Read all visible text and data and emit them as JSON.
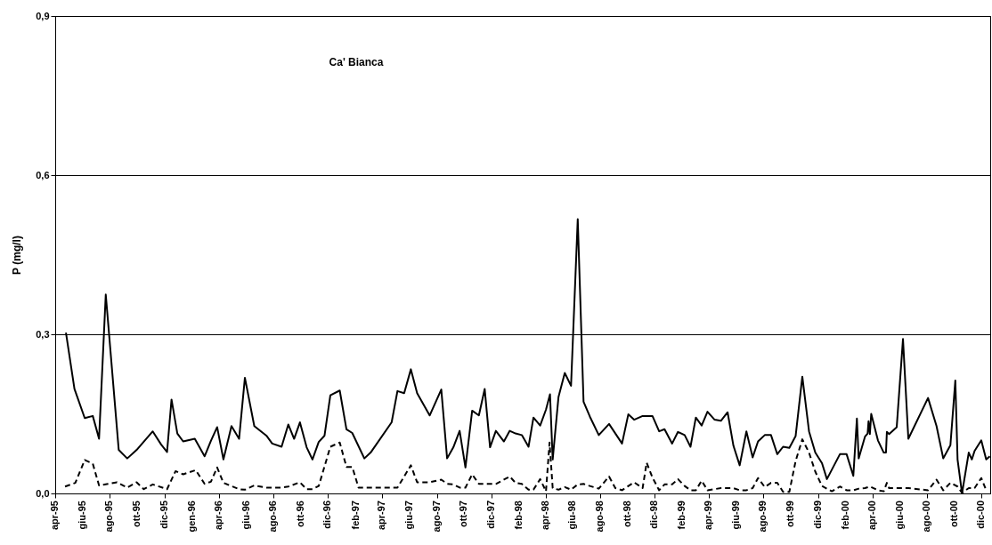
{
  "chart_data": {
    "type": "line",
    "title": "Ca' Bianca",
    "ylabel": "P (mg/l)",
    "ylim": [
      0,
      0.9
    ],
    "yticks": [
      {
        "value": 0,
        "label": "0,0"
      },
      {
        "value": 0.3,
        "label": "0,3"
      },
      {
        "value": 0.6,
        "label": "0,6"
      },
      {
        "value": 0.9,
        "label": "0,9"
      }
    ],
    "xlim": [
      "1995-04-01",
      "2000-12-20"
    ],
    "xticks": [
      {
        "value": "1995-04-01",
        "label": "apr-95"
      },
      {
        "value": "1995-06-01",
        "label": "giu-95"
      },
      {
        "value": "1995-08-01",
        "label": "ago-95"
      },
      {
        "value": "1995-10-01",
        "label": "ott-95"
      },
      {
        "value": "1995-12-01",
        "label": "dic-95"
      },
      {
        "value": "1996-02-01",
        "label": "gen-96"
      },
      {
        "value": "1996-04-01",
        "label": "apr-96"
      },
      {
        "value": "1996-06-01",
        "label": "giu-96"
      },
      {
        "value": "1996-08-01",
        "label": "ago-96"
      },
      {
        "value": "1996-10-01",
        "label": "ott-96"
      },
      {
        "value": "1996-12-01",
        "label": "dic-96"
      },
      {
        "value": "1997-02-01",
        "label": "feb-97"
      },
      {
        "value": "1997-04-01",
        "label": "apr-97"
      },
      {
        "value": "1997-06-01",
        "label": "giu-97"
      },
      {
        "value": "1997-08-01",
        "label": "ago-97"
      },
      {
        "value": "1997-10-01",
        "label": "ott-97"
      },
      {
        "value": "1997-12-01",
        "label": "dic-97"
      },
      {
        "value": "1998-02-01",
        "label": "feb-98"
      },
      {
        "value": "1998-04-01",
        "label": "apr-98"
      },
      {
        "value": "1998-06-01",
        "label": "giu-98"
      },
      {
        "value": "1998-08-01",
        "label": "ago-98"
      },
      {
        "value": "1998-10-01",
        "label": "ott-98"
      },
      {
        "value": "1998-12-01",
        "label": "dic-98"
      },
      {
        "value": "1999-02-01",
        "label": "feb-99"
      },
      {
        "value": "1999-04-01",
        "label": "apr-99"
      },
      {
        "value": "1999-06-01",
        "label": "giu-99"
      },
      {
        "value": "1999-08-01",
        "label": "ago-99"
      },
      {
        "value": "1999-10-01",
        "label": "ott-99"
      },
      {
        "value": "1999-12-01",
        "label": "dic-99"
      },
      {
        "value": "2000-02-01",
        "label": "feb-00"
      },
      {
        "value": "2000-04-01",
        "label": "apr-00"
      },
      {
        "value": "2000-06-01",
        "label": "giu-00"
      },
      {
        "value": "2000-08-01",
        "label": "ago-00"
      },
      {
        "value": "2000-10-01",
        "label": "ott-00"
      },
      {
        "value": "2000-12-01",
        "label": "dic-00"
      }
    ],
    "grid": "y",
    "marker": "none",
    "series": [
      {
        "color": "#000000",
        "line_style": "solid",
        "x": [
          "1995-04-25",
          "1995-05-14",
          "1995-06-06",
          "1995-06-24",
          "1995-07-08",
          "1995-07-23",
          "1995-08-21",
          "1995-09-09",
          "1995-09-30",
          "1995-11-05",
          "1995-11-24",
          "1995-12-07",
          "1995-12-17",
          "1995-12-30",
          "1996-01-12",
          "1996-02-07",
          "1996-02-29",
          "1996-03-14",
          "1996-03-28",
          "1996-04-11",
          "1996-04-29",
          "1996-05-16",
          "1996-05-29",
          "1996-06-19",
          "1996-07-16",
          "1996-07-29",
          "1996-08-19",
          "1996-09-03",
          "1996-09-16",
          "1996-09-29",
          "1996-10-14",
          "1996-10-27",
          "1996-11-10",
          "1996-11-23",
          "1996-12-06",
          "1996-12-27",
          "1997-01-11",
          "1997-01-24",
          "1997-02-20",
          "1997-03-06",
          "1997-04-22",
          "1997-05-05",
          "1997-05-20",
          "1997-06-04",
          "1997-06-18",
          "1997-07-16",
          "1997-08-11",
          "1997-08-24",
          "1997-09-07",
          "1997-09-21",
          "1997-10-04",
          "1997-10-19",
          "1997-11-03",
          "1997-11-16",
          "1997-11-28",
          "1997-12-11",
          "1997-12-29",
          "1998-01-11",
          "1998-01-24",
          "1998-02-07",
          "1998-02-22",
          "1998-03-05",
          "1998-03-20",
          "1998-04-02",
          "1998-04-11",
          "1998-04-17",
          "1998-04-30",
          "1998-05-14",
          "1998-05-28",
          "1998-06-12",
          "1998-06-25",
          "1998-07-09",
          "1998-07-29",
          "1998-08-21",
          "1998-09-19",
          "1998-10-03",
          "1998-10-16",
          "1998-11-04",
          "1998-11-26",
          "1998-12-11",
          "1998-12-23",
          "1999-01-09",
          "1999-01-22",
          "1999-02-06",
          "1999-02-19",
          "1999-03-03",
          "1999-03-16",
          "1999-03-29",
          "1999-04-14",
          "1999-04-28",
          "1999-05-13",
          "1999-05-26",
          "1999-06-09",
          "1999-06-24",
          "1999-07-08",
          "1999-07-20",
          "1999-08-04",
          "1999-08-18",
          "1999-09-01",
          "1999-09-14",
          "1999-09-28",
          "1999-10-12",
          "1999-10-27",
          "1999-11-11",
          "1999-11-25",
          "1999-12-10",
          "1999-12-21",
          "2000-01-19",
          "2000-02-03",
          "2000-02-18",
          "2000-02-26",
          "2000-03-01",
          "2000-03-15",
          "2000-03-21",
          "2000-03-23",
          "2000-03-26",
          "2000-03-29",
          "2000-04-13",
          "2000-04-26",
          "2000-05-01",
          "2000-05-03",
          "2000-05-08",
          "2000-05-25",
          "2000-06-08",
          "2000-06-20",
          "2000-08-03",
          "2000-08-22",
          "2000-09-06",
          "2000-09-22",
          "2000-10-03",
          "2000-10-08",
          "2000-10-18",
          "2000-11-02",
          "2000-11-09",
          "2000-11-15",
          "2000-11-30",
          "2000-12-11",
          "2000-12-19"
        ],
        "values": [
          0.303,
          0.197,
          0.142,
          0.146,
          0.103,
          0.375,
          0.082,
          0.066,
          0.082,
          0.117,
          0.092,
          0.078,
          0.177,
          0.113,
          0.098,
          0.103,
          0.07,
          0.099,
          0.125,
          0.064,
          0.127,
          0.103,
          0.218,
          0.127,
          0.109,
          0.094,
          0.088,
          0.13,
          0.103,
          0.134,
          0.087,
          0.064,
          0.097,
          0.109,
          0.185,
          0.194,
          0.121,
          0.114,
          0.066,
          0.077,
          0.134,
          0.193,
          0.189,
          0.234,
          0.189,
          0.147,
          0.196,
          0.066,
          0.087,
          0.118,
          0.049,
          0.156,
          0.147,
          0.197,
          0.087,
          0.118,
          0.098,
          0.118,
          0.113,
          0.11,
          0.088,
          0.143,
          0.128,
          0.158,
          0.187,
          0.064,
          0.182,
          0.227,
          0.203,
          0.517,
          0.173,
          0.145,
          0.11,
          0.131,
          0.094,
          0.149,
          0.139,
          0.146,
          0.146,
          0.117,
          0.121,
          0.094,
          0.116,
          0.11,
          0.088,
          0.143,
          0.128,
          0.154,
          0.139,
          0.137,
          0.153,
          0.09,
          0.053,
          0.117,
          0.068,
          0.098,
          0.11,
          0.11,
          0.074,
          0.088,
          0.086,
          0.108,
          0.22,
          0.117,
          0.077,
          0.057,
          0.027,
          0.074,
          0.074,
          0.033,
          0.141,
          0.066,
          0.107,
          0.113,
          0.136,
          0.112,
          0.15,
          0.1,
          0.077,
          0.077,
          0.116,
          0.112,
          0.125,
          0.291,
          0.103,
          0.18,
          0.127,
          0.066,
          0.091,
          0.213,
          0.064,
          0.0,
          0.077,
          0.064,
          0.08,
          0.1,
          0.064,
          0.07
        ]
      },
      {
        "color": "#000000",
        "line_style": "dashed",
        "x": [
          "1995-04-23",
          "1995-05-16",
          "1995-06-06",
          "1995-06-24",
          "1995-07-08",
          "1995-07-28",
          "1995-08-17",
          "1995-09-09",
          "1995-09-30",
          "1995-10-16",
          "1995-11-05",
          "1995-12-07",
          "1995-12-26",
          "1996-01-12",
          "1996-02-09",
          "1996-02-29",
          "1996-03-14",
          "1996-03-28",
          "1996-04-11",
          "1996-05-16",
          "1996-05-29",
          "1996-06-19",
          "1996-07-16",
          "1996-08-19",
          "1996-09-03",
          "1996-09-29",
          "1996-10-14",
          "1996-10-27",
          "1996-11-10",
          "1996-12-06",
          "1996-12-27",
          "1997-01-11",
          "1997-01-24",
          "1997-02-07",
          "1997-03-06",
          "1997-04-22",
          "1997-05-05",
          "1997-05-20",
          "1997-06-04",
          "1997-06-18",
          "1997-07-16",
          "1997-08-11",
          "1997-08-24",
          "1997-09-07",
          "1997-09-21",
          "1997-10-04",
          "1997-10-19",
          "1997-11-03",
          "1997-12-11",
          "1997-12-29",
          "1998-01-11",
          "1998-01-24",
          "1998-02-07",
          "1998-02-22",
          "1998-03-05",
          "1998-03-20",
          "1998-04-02",
          "1998-04-10",
          "1998-04-17",
          "1998-04-30",
          "1998-05-14",
          "1998-05-28",
          "1998-06-12",
          "1998-06-25",
          "1998-07-09",
          "1998-07-29",
          "1998-08-21",
          "1998-09-04",
          "1998-09-19",
          "1998-10-16",
          "1998-11-04",
          "1998-11-13",
          "1998-11-26",
          "1998-12-11",
          "1998-12-23",
          "1999-01-09",
          "1999-01-22",
          "1999-02-06",
          "1999-02-19",
          "1999-03-03",
          "1999-03-16",
          "1999-03-29",
          "1999-04-28",
          "1999-05-26",
          "1999-06-09",
          "1999-06-24",
          "1999-07-08",
          "1999-07-20",
          "1999-08-04",
          "1999-08-18",
          "1999-09-01",
          "1999-09-14",
          "1999-09-28",
          "1999-10-12",
          "1999-10-27",
          "1999-11-11",
          "1999-11-25",
          "1999-12-10",
          "2000-01-01",
          "2000-01-19",
          "2000-02-03",
          "2000-02-18",
          "2000-03-01",
          "2000-03-15",
          "2000-03-26",
          "2000-04-13",
          "2000-04-26",
          "2000-05-03",
          "2000-05-08",
          "2000-05-25",
          "2000-06-20",
          "2000-08-03",
          "2000-08-22",
          "2000-09-06",
          "2000-09-22",
          "2000-10-08",
          "2000-10-18",
          "2000-11-02",
          "2000-11-15",
          "2000-11-30",
          "2000-12-11"
        ],
        "values": [
          0.013,
          0.02,
          0.063,
          0.056,
          0.015,
          0.018,
          0.021,
          0.011,
          0.021,
          0.008,
          0.017,
          0.008,
          0.042,
          0.036,
          0.044,
          0.018,
          0.022,
          0.049,
          0.02,
          0.008,
          0.007,
          0.015,
          0.011,
          0.011,
          0.013,
          0.021,
          0.008,
          0.008,
          0.014,
          0.088,
          0.096,
          0.05,
          0.05,
          0.011,
          0.011,
          0.011,
          0.011,
          0.032,
          0.053,
          0.021,
          0.021,
          0.026,
          0.018,
          0.017,
          0.011,
          0.011,
          0.036,
          0.018,
          0.018,
          0.026,
          0.032,
          0.02,
          0.018,
          0.007,
          0.007,
          0.027,
          0.004,
          0.096,
          0.01,
          0.007,
          0.012,
          0.007,
          0.017,
          0.018,
          0.014,
          0.009,
          0.032,
          0.01,
          0.006,
          0.021,
          0.01,
          0.058,
          0.03,
          0.006,
          0.017,
          0.017,
          0.027,
          0.014,
          0.006,
          0.006,
          0.024,
          0.006,
          0.01,
          0.01,
          0.006,
          0.006,
          0.01,
          0.029,
          0.012,
          0.02,
          0.02,
          0.003,
          0.003,
          0.061,
          0.102,
          0.077,
          0.041,
          0.014,
          0.004,
          0.013,
          0.006,
          0.006,
          0.009,
          0.01,
          0.013,
          0.006,
          0.004,
          0.02,
          0.01,
          0.01,
          0.01,
          0.006,
          0.026,
          0.006,
          0.02,
          0.013,
          0.001,
          0.01,
          0.01,
          0.029,
          0.006
        ]
      }
    ]
  }
}
